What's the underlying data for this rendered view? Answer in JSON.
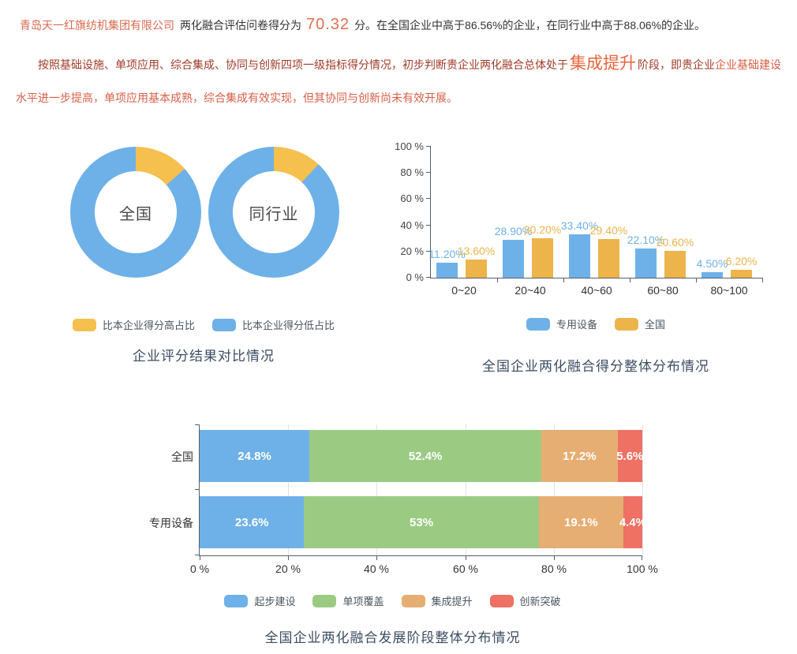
{
  "intro": {
    "company": "青岛天一红旗纺机集团有限公司",
    "mid": "两化融合评估问卷得分为",
    "score": "70.32",
    "tail": "分。在全国企业中高于86.56%的企业，在同行业中高于88.06%的企业。"
  },
  "stage_text": {
    "lead": "按照基础设施、单项应用、综合集成、协同与创新四项一级指标得分情况，初步判断贵企业两化融合总体处于",
    "stage": "集成提升",
    "mid": "阶段，即贵企业",
    "tail_line1": "企业基础建设",
    "tail_line2": "水平进一步提高，单项应用基本成熟，综合集成有效实现，但其协同与创新尚未有效开展。"
  },
  "colors": {
    "blue": "#6eb1e8",
    "yellow": "#f5c04e",
    "bar_yellow": "#ecb44a",
    "green": "#9bcb83",
    "orange": "#e6ae72",
    "red": "#ee7164",
    "caption": "#3b4d63",
    "dark_red_text": "#a03c28",
    "light_red_text": "#d75f47",
    "stage_red": "#e8643c",
    "score_orange": "#e0704e"
  },
  "chart_data": [
    {
      "type": "pie",
      "subtype": "donut-pair",
      "title": "企业评分结果对比情况",
      "legend": [
        "比本企业得分高占比",
        "比本企业得分低占比"
      ],
      "legend_position": "bottom",
      "high_color": "#f5c04e",
      "low_color": "#6eb1e8",
      "donuts": [
        {
          "label": "全国",
          "high_pct": 13.44,
          "low_pct": 86.56
        },
        {
          "label": "同行业",
          "high_pct": 11.94,
          "low_pct": 88.06
        }
      ]
    },
    {
      "type": "bar",
      "title": "全国企业两化融合得分整体分布情况",
      "categories": [
        "0~20",
        "20~40",
        "40~60",
        "60~80",
        "80~100"
      ],
      "series": [
        {
          "name": "专用设备",
          "color": "#6eb1e8",
          "values": [
            11.2,
            28.9,
            33.4,
            22.1,
            4.5
          ],
          "labels": [
            "11.20%",
            "28.90%",
            "33.40%",
            "22.10%",
            "4.50%"
          ]
        },
        {
          "name": "全国",
          "color": "#ecb44a",
          "values": [
            13.6,
            30.2,
            29.4,
            20.6,
            6.2
          ],
          "labels": [
            "13.60%",
            "30.20%",
            "29.40%",
            "20.60%",
            "6.20%"
          ]
        }
      ],
      "ylabels": [
        "0 %",
        "20 %",
        "40 %",
        "60 %",
        "80 %",
        "100 %"
      ],
      "ylim": [
        0,
        100
      ],
      "grid": false,
      "legend_position": "bottom"
    },
    {
      "type": "bar",
      "subtype": "horizontal-stacked",
      "title": "全国企业两化融合发展阶段整体分布情况",
      "categories": [
        "全国",
        "专用设备"
      ],
      "series": [
        {
          "name": "起步建设",
          "color": "#6eb1e8",
          "values": [
            24.8,
            23.6
          ],
          "labels": [
            "24.8%",
            "23.6%"
          ]
        },
        {
          "name": "单项覆盖",
          "color": "#9bcb83",
          "values": [
            52.4,
            53
          ],
          "labels": [
            "52.4%",
            "53%"
          ]
        },
        {
          "name": "集成提升",
          "color": "#e6ae72",
          "values": [
            17.2,
            19.1
          ],
          "labels": [
            "17.2%",
            "19.1%"
          ]
        },
        {
          "name": "创新突破",
          "color": "#ee7164",
          "values": [
            5.6,
            4.4
          ],
          "labels": [
            "5.6%",
            "4.4%"
          ]
        }
      ],
      "xlabels": [
        "0 %",
        "20 %",
        "40 %",
        "60 %",
        "80 %",
        "100 %"
      ],
      "xlim": [
        0,
        100
      ],
      "grid": true,
      "legend_position": "bottom"
    }
  ]
}
